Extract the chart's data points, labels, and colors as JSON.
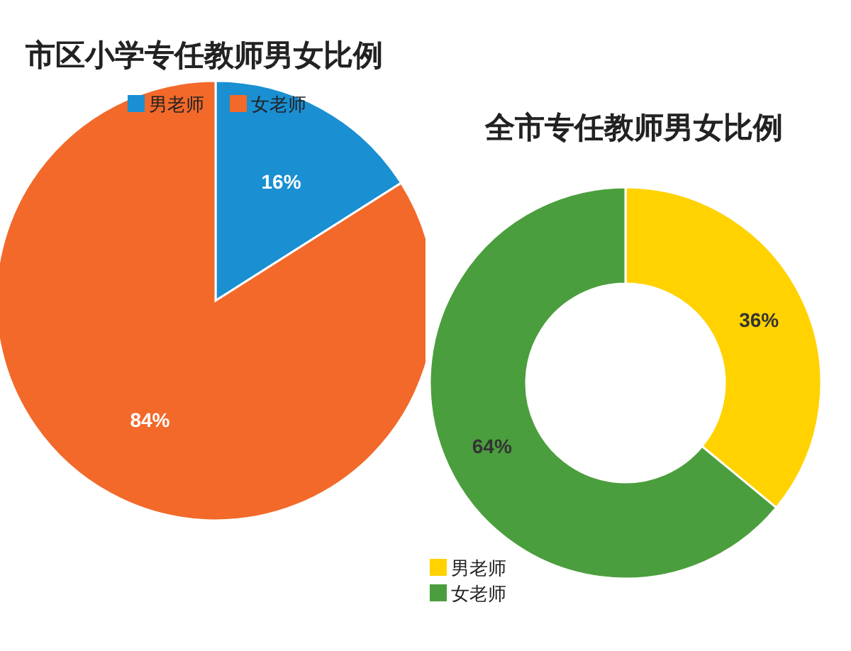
{
  "chart_data": [
    {
      "type": "pie",
      "title": "市区小学专任教师男女比例",
      "categories": [
        "男老师",
        "女老师"
      ],
      "values": [
        16,
        84
      ],
      "colors": [
        "#1a8fd2",
        "#f2692a"
      ],
      "value_labels": [
        "16%",
        "84%"
      ],
      "legend": "top"
    },
    {
      "type": "donut",
      "title": "全市专任教师男女比例",
      "categories": [
        "男老师",
        "女老师"
      ],
      "values": [
        36,
        64
      ],
      "colors": [
        "#ffd200",
        "#4b9e3d"
      ],
      "value_labels": [
        "36%",
        "64%"
      ],
      "legend": "bottom left"
    }
  ]
}
